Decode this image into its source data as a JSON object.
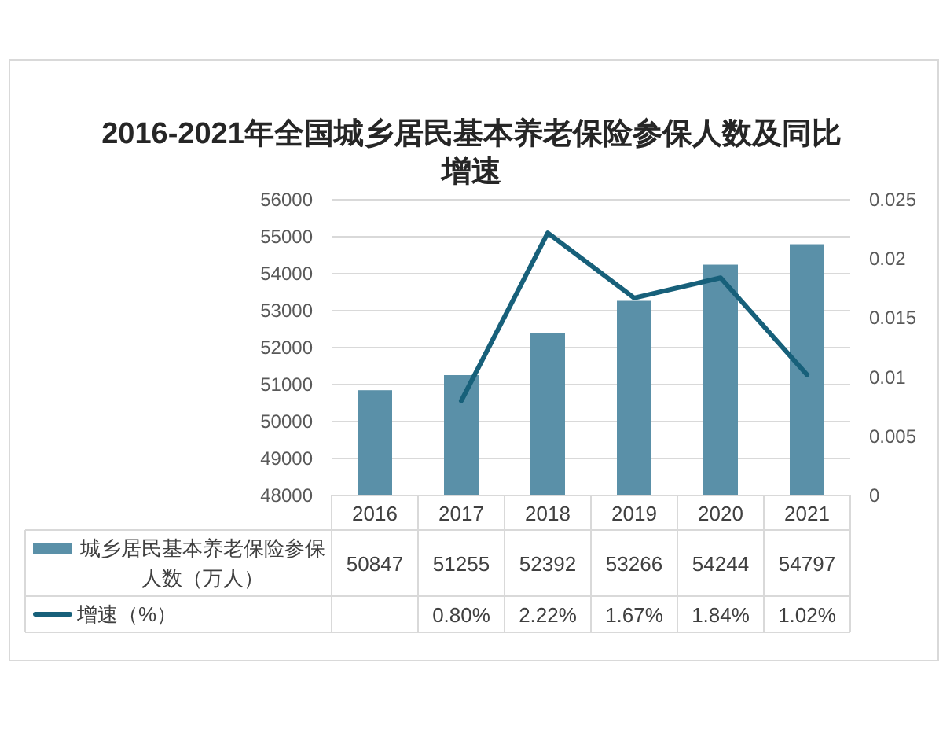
{
  "chart_data": {
    "type": "bar",
    "title": "2016-2021年全国城乡居民基本养老保险参保人数及同比增速",
    "categories": [
      "2016",
      "2017",
      "2018",
      "2019",
      "2020",
      "2021"
    ],
    "series": [
      {
        "name": "城乡居民基本养老保险参保人数（万人）",
        "color": "#5a90a8",
        "values": [
          50847,
          51255,
          52392,
          53266,
          54244,
          54797
        ],
        "value_labels": [
          "50847",
          "51255",
          "52392",
          "53266",
          "54244",
          "54797"
        ]
      },
      {
        "name": "增速（%）",
        "type": "line",
        "axis": "y2",
        "color": "#17607a",
        "values": [
          null,
          0.008,
          0.0222,
          0.0167,
          0.0184,
          0.0102
        ],
        "value_labels": [
          null,
          "0.80%",
          "2.22%",
          "1.67%",
          "1.84%",
          "1.02%"
        ]
      }
    ],
    "ylim": [
      48000,
      56000
    ],
    "yticks": [
      48000,
      49000,
      50000,
      51000,
      52000,
      53000,
      54000,
      55000,
      56000
    ],
    "y2lim": [
      0,
      0.025
    ],
    "y2ticks": [
      0,
      0.005,
      0.01,
      0.015,
      0.02,
      0.025
    ],
    "grid": "y",
    "legend": "bottom"
  }
}
